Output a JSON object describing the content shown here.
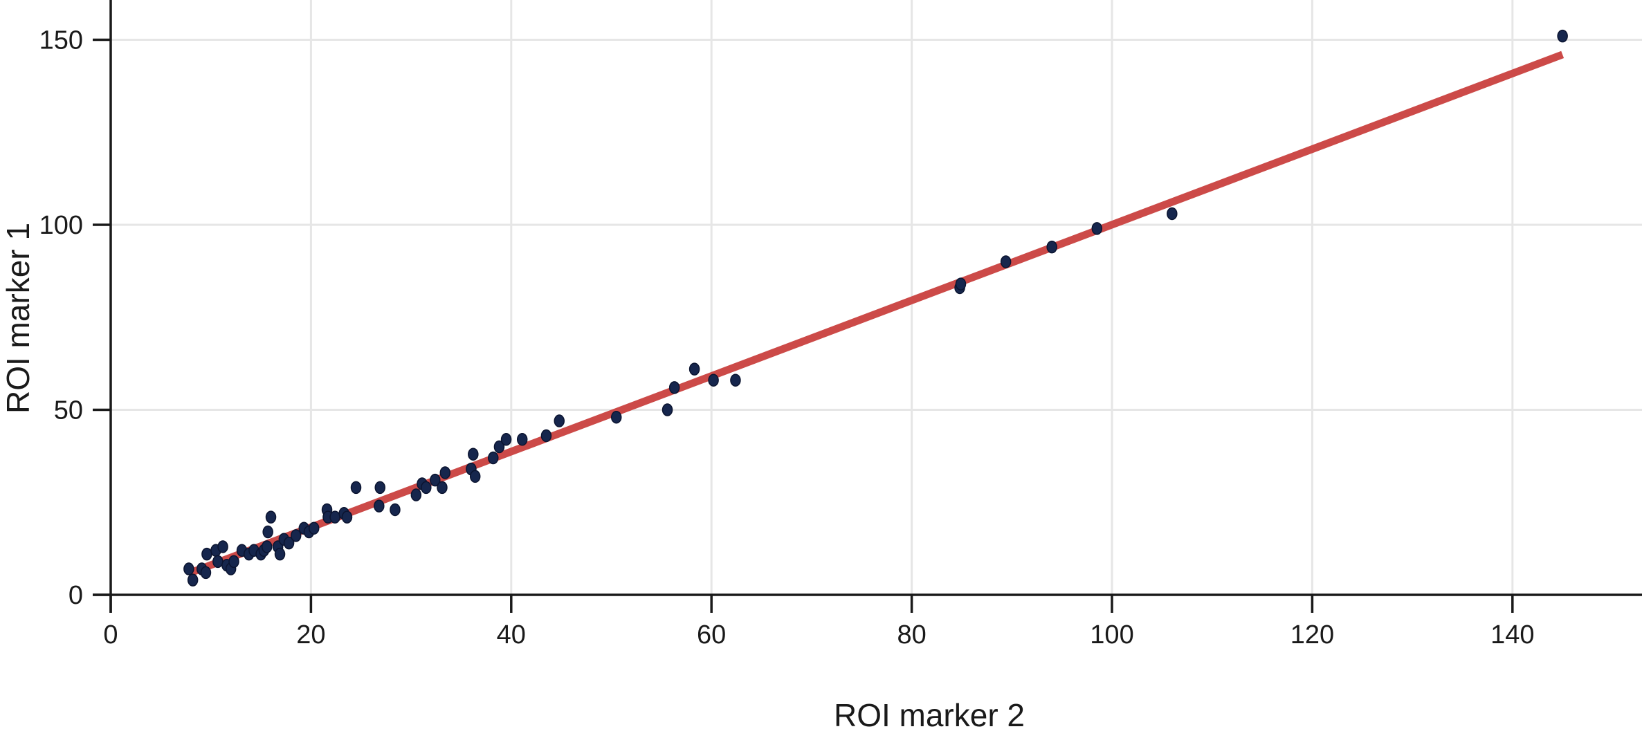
{
  "colors": {
    "points": "#16264d",
    "fit_line": "#cc4a48",
    "grid": "#e6e6e6",
    "axis": "#1a1a1a",
    "background": "#ffffff"
  },
  "chart_data": {
    "type": "scatter",
    "title": "",
    "xlabel": "ROI marker 2",
    "ylabel": "ROI marker 1",
    "xlim": [
      0,
      153
    ],
    "ylim": [
      0,
      160
    ],
    "x_ticks": [
      "0",
      "20",
      "40",
      "60",
      "80",
      "100",
      "120",
      "140"
    ],
    "y_ticks": [
      "0",
      "50",
      "100",
      "150"
    ],
    "grid": true,
    "legend": "none",
    "fit_line": {
      "x": [
        8,
        145
      ],
      "y": [
        6,
        146
      ]
    },
    "points": [
      {
        "x": 7.8,
        "y": 7
      },
      {
        "x": 8.2,
        "y": 4
      },
      {
        "x": 9.1,
        "y": 7
      },
      {
        "x": 9.5,
        "y": 6
      },
      {
        "x": 9.6,
        "y": 11
      },
      {
        "x": 10.5,
        "y": 12
      },
      {
        "x": 10.7,
        "y": 9
      },
      {
        "x": 11.2,
        "y": 13
      },
      {
        "x": 11.6,
        "y": 8
      },
      {
        "x": 12.0,
        "y": 7
      },
      {
        "x": 12.3,
        "y": 9
      },
      {
        "x": 13.1,
        "y": 12
      },
      {
        "x": 13.8,
        "y": 11
      },
      {
        "x": 14.3,
        "y": 12
      },
      {
        "x": 15.0,
        "y": 11
      },
      {
        "x": 15.3,
        "y": 12
      },
      {
        "x": 15.6,
        "y": 13
      },
      {
        "x": 15.7,
        "y": 17
      },
      {
        "x": 16.0,
        "y": 21
      },
      {
        "x": 16.7,
        "y": 13
      },
      {
        "x": 16.9,
        "y": 11
      },
      {
        "x": 17.3,
        "y": 15
      },
      {
        "x": 17.8,
        "y": 14
      },
      {
        "x": 18.5,
        "y": 16
      },
      {
        "x": 19.3,
        "y": 18
      },
      {
        "x": 19.8,
        "y": 17
      },
      {
        "x": 20.3,
        "y": 18
      },
      {
        "x": 21.6,
        "y": 23
      },
      {
        "x": 21.7,
        "y": 21
      },
      {
        "x": 22.4,
        "y": 21
      },
      {
        "x": 23.3,
        "y": 22
      },
      {
        "x": 23.6,
        "y": 21
      },
      {
        "x": 24.5,
        "y": 29
      },
      {
        "x": 26.8,
        "y": 24
      },
      {
        "x": 26.9,
        "y": 29
      },
      {
        "x": 28.4,
        "y": 23
      },
      {
        "x": 30.5,
        "y": 27
      },
      {
        "x": 31.1,
        "y": 30
      },
      {
        "x": 31.5,
        "y": 29
      },
      {
        "x": 32.4,
        "y": 31
      },
      {
        "x": 33.1,
        "y": 29
      },
      {
        "x": 33.4,
        "y": 33
      },
      {
        "x": 36.0,
        "y": 34
      },
      {
        "x": 36.2,
        "y": 38
      },
      {
        "x": 36.4,
        "y": 32
      },
      {
        "x": 38.2,
        "y": 37
      },
      {
        "x": 38.8,
        "y": 40
      },
      {
        "x": 39.5,
        "y": 42
      },
      {
        "x": 41.1,
        "y": 42
      },
      {
        "x": 43.5,
        "y": 43
      },
      {
        "x": 44.8,
        "y": 47
      },
      {
        "x": 50.5,
        "y": 48
      },
      {
        "x": 55.6,
        "y": 50
      },
      {
        "x": 56.3,
        "y": 56
      },
      {
        "x": 58.3,
        "y": 61
      },
      {
        "x": 60.2,
        "y": 58
      },
      {
        "x": 62.4,
        "y": 58
      },
      {
        "x": 84.8,
        "y": 83
      },
      {
        "x": 84.9,
        "y": 84
      },
      {
        "x": 89.4,
        "y": 90
      },
      {
        "x": 94.0,
        "y": 94
      },
      {
        "x": 98.5,
        "y": 99
      },
      {
        "x": 106.0,
        "y": 103
      },
      {
        "x": 145.0,
        "y": 151
      }
    ]
  }
}
